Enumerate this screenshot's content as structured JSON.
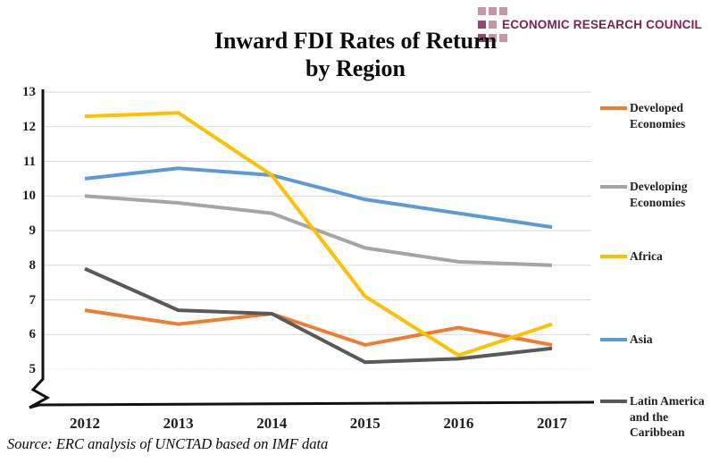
{
  "header": {
    "logo_text": "ECONOMIC RESEARCH COUNCIL",
    "brand_color": "#7e2150",
    "title_line1": "Inward FDI Rates of Return",
    "title_line2": "by Region"
  },
  "source_note": "Source: ERC analysis of UNCTAD based on IMF data",
  "chart_data": {
    "type": "line",
    "title": "Inward FDI Rates of Return by Region",
    "x": [
      "2012",
      "2013",
      "2014",
      "2015",
      "2016",
      "2017"
    ],
    "series": [
      {
        "name": "Developed Economies",
        "color": "#ED7D31",
        "values": [
          6.7,
          6.3,
          6.6,
          5.7,
          6.2,
          5.7
        ]
      },
      {
        "name": "Developing Economies",
        "color": "#A5A5A5",
        "values": [
          10.0,
          9.8,
          9.5,
          8.5,
          8.1,
          8.0
        ]
      },
      {
        "name": "Africa",
        "color": "#FFC000",
        "values": [
          12.3,
          12.4,
          10.6,
          7.1,
          5.4,
          6.3
        ]
      },
      {
        "name": "Asia",
        "color": "#5B9BD5",
        "values": [
          10.5,
          10.8,
          10.6,
          9.9,
          9.5,
          9.1
        ]
      },
      {
        "name": "Latin America and the Caribbean",
        "color": "#595959",
        "values": [
          7.9,
          6.7,
          6.6,
          5.2,
          5.3,
          5.6
        ]
      }
    ],
    "yticks": [
      13,
      12,
      11,
      10,
      9,
      8,
      7,
      6,
      5
    ],
    "ylim": [
      5,
      13
    ],
    "axis_break": true,
    "grid": true,
    "legend_position": "right",
    "draw_order": [
      3,
      1,
      0,
      2,
      4
    ]
  }
}
